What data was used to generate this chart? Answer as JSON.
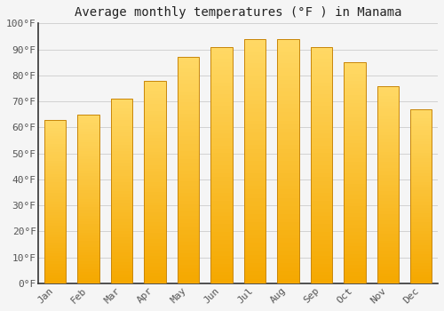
{
  "title": "Average monthly temperatures (°F ) in Manama",
  "categories": [
    "Jan",
    "Feb",
    "Mar",
    "Apr",
    "May",
    "Jun",
    "Jul",
    "Aug",
    "Sep",
    "Oct",
    "Nov",
    "Dec"
  ],
  "values": [
    63,
    65,
    71,
    78,
    87,
    91,
    94,
    94,
    91,
    85,
    76,
    67
  ],
  "bar_color_top": "#FFD966",
  "bar_color_bottom": "#F5A800",
  "bar_edge_color": "#C8860A",
  "background_color": "#F5F5F5",
  "plot_bg_color": "#F5F5F5",
  "grid_color": "#CCCCCC",
  "spine_color": "#333333",
  "tick_color": "#555555",
  "title_color": "#222222",
  "ylim": [
    0,
    100
  ],
  "ytick_step": 10,
  "title_fontsize": 10,
  "tick_fontsize": 8,
  "bar_width": 0.65
}
